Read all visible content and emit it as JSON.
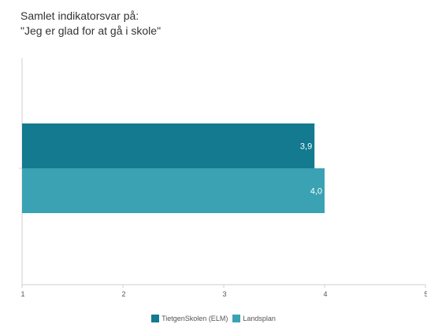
{
  "title_lines": [
    "Samlet indikatorsvar på:",
    "\"Jeg er glad for at gå i skole\""
  ],
  "chart_data": {
    "type": "bar",
    "orientation": "horizontal",
    "categories": [
      ""
    ],
    "series": [
      {
        "name": "TietgenSkolen (ELM)",
        "values": [
          3.9
        ],
        "labels": [
          "3,9"
        ],
        "color": "#137a8f"
      },
      {
        "name": "Landsplan",
        "values": [
          4.0
        ],
        "labels": [
          "4,0"
        ],
        "color": "#3aa2b3"
      }
    ],
    "xlim": [
      1,
      5
    ],
    "xticks": [
      {
        "value": 1,
        "label": "1"
      },
      {
        "value": 2,
        "label": "2"
      },
      {
        "value": 3,
        "label": "3"
      },
      {
        "value": 4,
        "label": "4"
      },
      {
        "value": 5,
        "label": "5"
      }
    ],
    "grid": false,
    "legend_position": "bottom-center"
  },
  "colors": {
    "axis": "#cfcfcf"
  }
}
